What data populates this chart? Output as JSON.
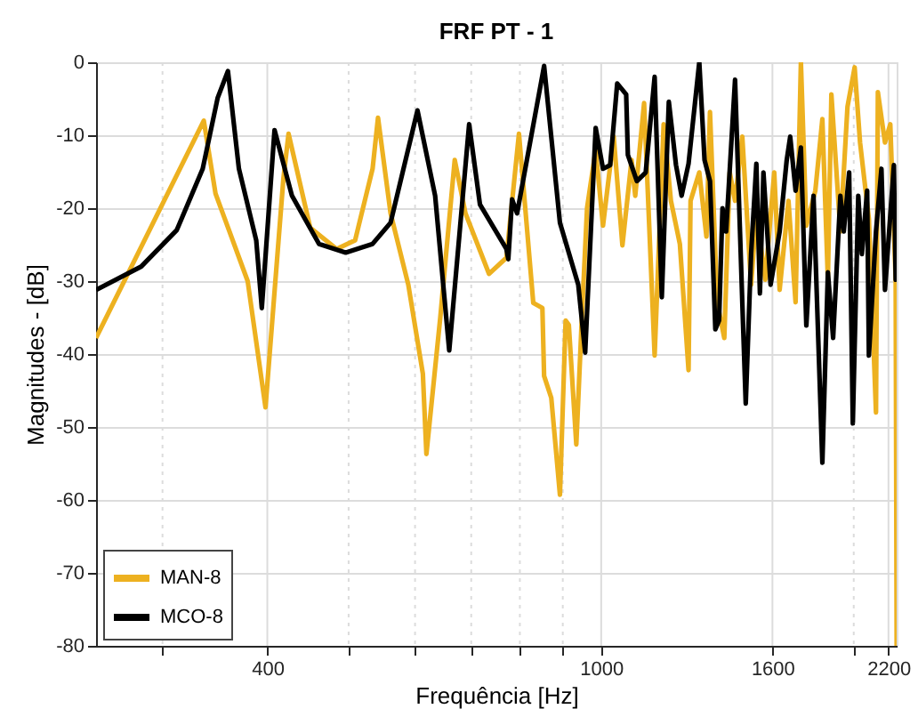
{
  "chart_data": {
    "type": "line",
    "title": "FRF PT - 1",
    "xlabel": "Frequência [Hz]",
    "ylabel": "Magnitudes - [dB]",
    "log": "x",
    "xlim": [
      250,
      2250
    ],
    "ylim": [
      -80,
      0
    ],
    "xticks": [
      {
        "value": 300,
        "label": null
      },
      400,
      {
        "value": 500,
        "label": null
      },
      {
        "value": 600,
        "label": null
      },
      {
        "value": 700,
        "label": null
      },
      {
        "value": 800,
        "label": null
      },
      {
        "value": 900,
        "label": null
      },
      1000,
      1600,
      {
        "value": 2000,
        "label": null
      },
      2200
    ],
    "yticks": [
      -80,
      -70,
      -60,
      -50,
      -40,
      -30,
      -20,
      -10,
      0
    ],
    "grid": true,
    "legend": "bottom left",
    "line_style": "solid",
    "marker": "none",
    "series": [
      {
        "name": "MAN-8",
        "color": "#edb120",
        "x": [
          250,
          336,
          347,
          379,
          398,
          418,
          424,
          450,
          484,
          509,
          534,
          542,
          561,
          589,
          613,
          619,
          643,
          669,
          689,
          735,
          771,
          798,
          830,
          851,
          855,
          872,
          893,
          907,
          915,
          934,
          948,
          962,
          985,
          1005,
          1035,
          1060,
          1087,
          1098,
          1125,
          1158,
          1187,
          1211,
          1241,
          1271,
          1278,
          1309,
          1335,
          1348,
          1375,
          1402,
          1423,
          1444,
          1473,
          1509,
          1531,
          1569,
          1608,
          1632,
          1672,
          1705,
          1730,
          1756,
          1800,
          1835,
          1863,
          1881,
          1928,
          1966,
          2005,
          2035,
          2085,
          2126,
          2137,
          2179,
          2211,
          2244,
          2250
        ],
        "values": [
          -37.8,
          -8,
          -18,
          -30,
          -47.3,
          -16,
          -9.8,
          -22.7,
          -25.6,
          -24.4,
          -14.6,
          -7.6,
          -20.7,
          -30.5,
          -42.7,
          -53.7,
          -35,
          -13.4,
          -20.7,
          -29,
          -26.8,
          -9.8,
          -33,
          -33.7,
          -43,
          -46,
          -59.3,
          -35.4,
          -36,
          -52.4,
          -35.4,
          -20,
          -12,
          -22.4,
          -10.2,
          -25.1,
          -13.4,
          -18.3,
          -5.6,
          -40.2,
          -8.5,
          -19,
          -24.9,
          -42.2,
          -19,
          -15.1,
          -23.9,
          -6.8,
          -32.9,
          -37.8,
          -15.1,
          -19,
          -10.2,
          -30.5,
          -20.7,
          -29.8,
          -15.1,
          -31.2,
          -19,
          -32.9,
          0,
          -22.4,
          -17.6,
          -7.8,
          -29.8,
          -4.4,
          -23.2,
          -6.1,
          -0.7,
          -11,
          -21.5,
          -48,
          -4.1,
          -11,
          -8.5,
          -29.8,
          -80
        ]
      },
      {
        "name": "MCO-8",
        "color": "#000000",
        "x": [
          250,
          283,
          312,
          335,
          349,
          359,
          370,
          388,
          394,
          408,
          428,
          461,
          496,
          534,
          561,
          604,
          634,
          659,
          696,
          717,
          771,
          775,
          783,
          794,
          855,
          893,
          939,
          957,
          985,
          1005,
          1025,
          1045,
          1071,
          1076,
          1103,
          1130,
          1158,
          1181,
          1204,
          1228,
          1247,
          1271,
          1309,
          1328,
          1348,
          1368,
          1382,
          1395,
          1409,
          1444,
          1473,
          1487,
          1509,
          1531,
          1546,
          1561,
          1592,
          1632,
          1664,
          1680,
          1705,
          1730,
          1756,
          1791,
          1835,
          1863,
          1890,
          1928,
          1946,
          1975,
          1995,
          2025,
          2045,
          2075,
          2085,
          2126,
          2158,
          2179,
          2233,
          2244,
          2250
        ],
        "values": [
          -31.2,
          -28,
          -23,
          -14.6,
          -4.9,
          -1.2,
          -14.6,
          -24.4,
          -33.7,
          -9.3,
          -18.3,
          -24.9,
          -26.1,
          -24.9,
          -22,
          -6.6,
          -18.3,
          -39.5,
          -8.5,
          -19.5,
          -25.6,
          -27,
          -18.8,
          -20.7,
          -0.5,
          -22,
          -30.5,
          -39.8,
          -9,
          -14.6,
          -14.1,
          -2.9,
          -4.4,
          -12.7,
          -16.3,
          -15.1,
          -2,
          -32.2,
          -5.4,
          -14.1,
          -18.3,
          -13.9,
          0,
          -13.4,
          -16.3,
          -36.6,
          -35.4,
          -20,
          -23.2,
          -2.4,
          -32.9,
          -46.8,
          -26.3,
          -13.9,
          -31.7,
          -15.1,
          -30.5,
          -23.2,
          -13.4,
          -10.2,
          -17.6,
          -11.7,
          -36.1,
          -18.3,
          -54.9,
          -28.8,
          -37.8,
          -18.3,
          -23.2,
          -15.1,
          -49.5,
          -18.3,
          -26.3,
          -17.6,
          -40.2,
          -23.2,
          -14.6,
          -31.2,
          -14.1,
          -29.8,
          -20
        ]
      }
    ]
  }
}
